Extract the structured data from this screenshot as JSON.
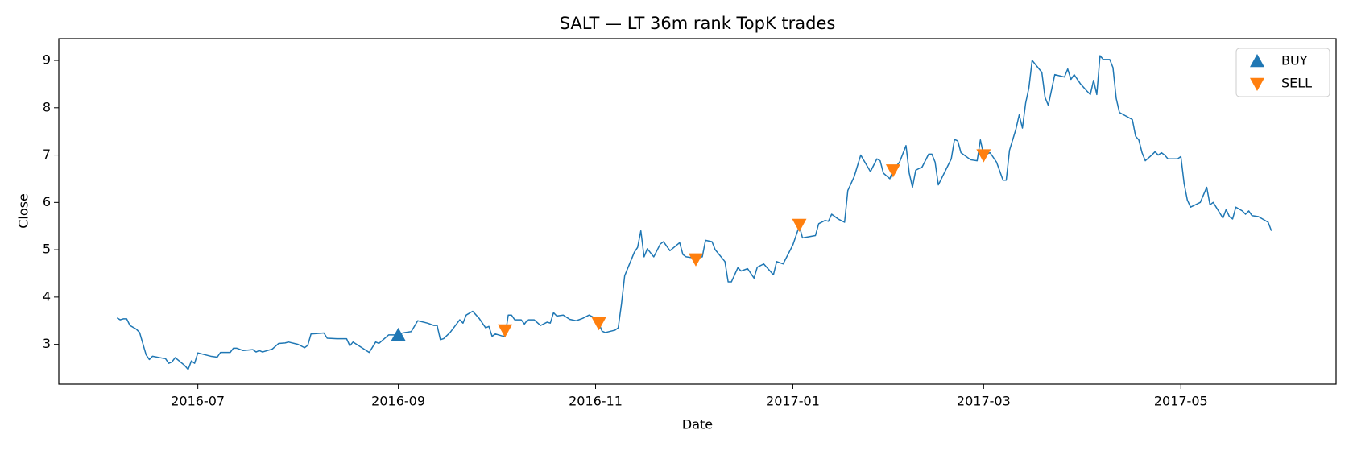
{
  "chart_data": {
    "type": "line",
    "title": "SALT — LT 36m rank TopK trades",
    "xlabel": "Date",
    "ylabel": "Close",
    "color": "#1f77b4",
    "x": [
      "2016-06-06",
      "2016-06-07",
      "2016-06-08",
      "2016-06-09",
      "2016-06-10",
      "2016-06-12",
      "2016-06-13",
      "2016-06-15",
      "2016-06-16",
      "2016-06-17",
      "2016-06-20",
      "2016-06-21",
      "2016-06-22",
      "2016-06-23",
      "2016-06-24",
      "2016-06-27",
      "2016-06-28",
      "2016-06-29",
      "2016-06-30",
      "2016-07-01",
      "2016-07-05",
      "2016-07-07",
      "2016-07-08",
      "2016-07-11",
      "2016-07-12",
      "2016-07-13",
      "2016-07-15",
      "2016-07-18",
      "2016-07-19",
      "2016-07-20",
      "2016-07-21",
      "2016-07-24",
      "2016-07-26",
      "2016-07-28",
      "2016-07-29",
      "2016-08-01",
      "2016-08-03",
      "2016-08-04",
      "2016-08-05",
      "2016-08-09",
      "2016-08-10",
      "2016-08-13",
      "2016-08-16",
      "2016-08-17",
      "2016-08-18",
      "2016-08-23",
      "2016-08-25",
      "2016-08-26",
      "2016-08-29",
      "2016-08-31",
      "2016-09-01",
      "2016-09-03",
      "2016-09-05",
      "2016-09-07",
      "2016-09-10",
      "2016-09-12",
      "2016-09-13",
      "2016-09-14",
      "2016-09-15",
      "2016-09-17",
      "2016-09-20",
      "2016-09-21",
      "2016-09-22",
      "2016-09-24",
      "2016-09-26",
      "2016-09-27",
      "2016-09-28",
      "2016-09-29",
      "2016-09-30",
      "2016-10-01",
      "2016-10-03",
      "2016-10-04",
      "2016-10-05",
      "2016-10-06",
      "2016-10-07",
      "2016-10-09",
      "2016-10-10",
      "2016-10-11",
      "2016-10-13",
      "2016-10-15",
      "2016-10-17",
      "2016-10-18",
      "2016-10-19",
      "2016-10-20",
      "2016-10-22",
      "2016-10-24",
      "2016-10-26",
      "2016-10-28",
      "2016-10-30",
      "2016-11-01",
      "2016-11-02",
      "2016-11-03",
      "2016-11-04",
      "2016-11-07",
      "2016-11-08",
      "2016-11-09",
      "2016-11-10",
      "2016-11-13",
      "2016-11-14",
      "2016-11-15",
      "2016-11-16",
      "2016-11-17",
      "2016-11-19",
      "2016-11-21",
      "2016-11-22",
      "2016-11-24",
      "2016-11-27",
      "2016-11-28",
      "2016-11-29",
      "2016-12-02",
      "2016-12-04",
      "2016-12-05",
      "2016-12-07",
      "2016-12-08",
      "2016-12-11",
      "2016-12-12",
      "2016-12-13",
      "2016-12-15",
      "2016-12-16",
      "2016-12-18",
      "2016-12-20",
      "2016-12-21",
      "2016-12-23",
      "2016-12-26",
      "2016-12-27",
      "2016-12-29",
      "2017-01-01",
      "2017-01-03",
      "2017-01-04",
      "2017-01-08",
      "2017-01-09",
      "2017-01-11",
      "2017-01-12",
      "2017-01-13",
      "2017-01-15",
      "2017-01-17",
      "2017-01-18",
      "2017-01-20",
      "2017-01-22",
      "2017-01-25",
      "2017-01-27",
      "2017-01-28",
      "2017-01-29",
      "2017-01-31",
      "2017-02-01",
      "2017-02-03",
      "2017-02-05",
      "2017-02-06",
      "2017-02-07",
      "2017-02-08",
      "2017-02-10",
      "2017-02-12",
      "2017-02-13",
      "2017-02-14",
      "2017-02-15",
      "2017-02-19",
      "2017-02-20",
      "2017-02-21",
      "2017-02-22",
      "2017-02-25",
      "2017-02-27",
      "2017-02-28",
      "2017-03-01",
      "2017-03-03",
      "2017-03-05",
      "2017-03-07",
      "2017-03-08",
      "2017-03-09",
      "2017-03-11",
      "2017-03-12",
      "2017-03-13",
      "2017-03-14",
      "2017-03-15",
      "2017-03-16",
      "2017-03-19",
      "2017-03-20",
      "2017-03-21",
      "2017-03-23",
      "2017-03-26",
      "2017-03-27",
      "2017-03-28",
      "2017-03-29",
      "2017-03-31",
      "2017-04-02",
      "2017-04-03",
      "2017-04-04",
      "2017-04-05",
      "2017-04-06",
      "2017-04-07",
      "2017-04-09",
      "2017-04-10",
      "2017-04-11",
      "2017-04-12",
      "2017-04-16",
      "2017-04-17",
      "2017-04-18",
      "2017-04-19",
      "2017-04-20",
      "2017-04-22",
      "2017-04-23",
      "2017-04-24",
      "2017-04-25",
      "2017-04-26",
      "2017-04-27",
      "2017-04-30",
      "2017-05-01",
      "2017-05-02",
      "2017-05-03",
      "2017-05-04",
      "2017-05-07",
      "2017-05-09",
      "2017-05-10",
      "2017-05-11",
      "2017-05-13",
      "2017-05-14",
      "2017-05-15",
      "2017-05-16",
      "2017-05-17",
      "2017-05-18",
      "2017-05-20",
      "2017-05-21",
      "2017-05-22",
      "2017-05-23",
      "2017-05-25",
      "2017-05-28",
      "2017-05-29"
    ],
    "values": [
      3.56,
      3.52,
      3.54,
      3.54,
      3.4,
      3.32,
      3.25,
      2.78,
      2.68,
      2.75,
      2.71,
      2.7,
      2.6,
      2.63,
      2.72,
      2.55,
      2.47,
      2.65,
      2.6,
      2.82,
      2.75,
      2.73,
      2.83,
      2.83,
      2.92,
      2.92,
      2.87,
      2.89,
      2.84,
      2.87,
      2.84,
      2.9,
      3.02,
      3.03,
      3.05,
      3.0,
      2.93,
      2.98,
      3.22,
      3.24,
      3.13,
      3.12,
      3.12,
      2.97,
      3.05,
      2.83,
      3.05,
      3.02,
      3.2,
      3.2,
      3.22,
      3.25,
      3.27,
      3.5,
      3.45,
      3.4,
      3.4,
      3.1,
      3.12,
      3.25,
      3.52,
      3.45,
      3.62,
      3.7,
      3.55,
      3.45,
      3.35,
      3.38,
      3.17,
      3.22,
      3.18,
      3.17,
      3.62,
      3.62,
      3.52,
      3.52,
      3.43,
      3.52,
      3.52,
      3.4,
      3.47,
      3.45,
      3.67,
      3.6,
      3.62,
      3.53,
      3.5,
      3.55,
      3.62,
      3.55,
      3.45,
      3.28,
      3.25,
      3.3,
      3.35,
      3.85,
      4.45,
      4.95,
      5.05,
      5.4,
      4.85,
      5.02,
      4.85,
      5.12,
      5.17,
      4.98,
      5.15,
      4.9,
      4.85,
      4.82,
      4.85,
      5.2,
      5.17,
      5.0,
      4.75,
      4.32,
      4.32,
      4.62,
      4.55,
      4.6,
      4.4,
      4.63,
      4.7,
      4.47,
      4.75,
      4.7,
      5.1,
      5.5,
      5.25,
      5.3,
      5.55,
      5.62,
      5.6,
      5.75,
      5.65,
      5.58,
      6.25,
      6.55,
      7.0,
      6.65,
      6.92,
      6.88,
      6.62,
      6.5,
      6.68,
      6.85,
      7.2,
      6.62,
      6.32,
      6.68,
      6.75,
      7.02,
      7.02,
      6.85,
      6.37,
      6.92,
      7.33,
      7.3,
      7.05,
      6.9,
      6.88,
      7.32,
      7.0,
      7.05,
      6.85,
      6.47,
      6.47,
      7.1,
      7.55,
      7.85,
      7.57,
      8.1,
      8.42,
      9.0,
      8.75,
      8.22,
      8.05,
      8.7,
      8.65,
      8.82,
      8.6,
      8.7,
      8.5,
      8.35,
      8.28,
      8.58,
      8.28,
      9.1,
      9.02,
      9.02,
      8.85,
      8.2,
      7.9,
      7.75,
      7.4,
      7.32,
      7.05,
      6.88,
      7.0,
      7.07,
      7.0,
      7.05,
      7.0,
      6.92,
      6.92,
      6.97,
      6.4,
      6.05,
      5.9,
      6.0,
      6.32,
      5.95,
      6.0,
      5.78,
      5.67,
      5.85,
      5.7,
      5.65,
      5.9,
      5.82,
      5.75,
      5.82,
      5.72,
      5.7,
      5.58,
      5.4
    ],
    "series": [
      {
        "name": "BUY",
        "color": "#1f77b4",
        "marker": "^",
        "x": [
          "2016-09-01"
        ],
        "values": [
          3.2
        ]
      },
      {
        "name": "SELL",
        "color": "#ff7f0e",
        "marker": "v",
        "x": [
          "2016-10-04",
          "2016-11-02",
          "2016-12-02",
          "2017-01-03",
          "2017-02-01",
          "2017-03-01"
        ],
        "values": [
          3.3,
          3.45,
          4.8,
          5.53,
          6.68,
          7.0
        ]
      }
    ],
    "xlim": [
      "2016-05-19",
      "2017-06-18"
    ],
    "xticks": [
      "2016-07",
      "2016-09",
      "2016-11",
      "2017-01",
      "2017-03",
      "2017-05"
    ],
    "ylim": [
      2.16,
      9.46
    ],
    "yticks": [
      3,
      4,
      5,
      6,
      7,
      8,
      9
    ],
    "legend": "upper right"
  }
}
